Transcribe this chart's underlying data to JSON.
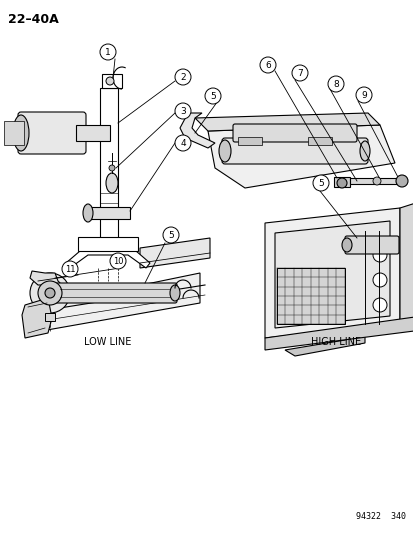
{
  "title": "22–40A",
  "background_color": "#ffffff",
  "line_color": "#000000",
  "footer": "94322  340",
  "label_low_line": "LOW LINE",
  "label_high_line": "HIGH LINE",
  "figsize": [
    4.14,
    5.33
  ],
  "dpi": 100
}
